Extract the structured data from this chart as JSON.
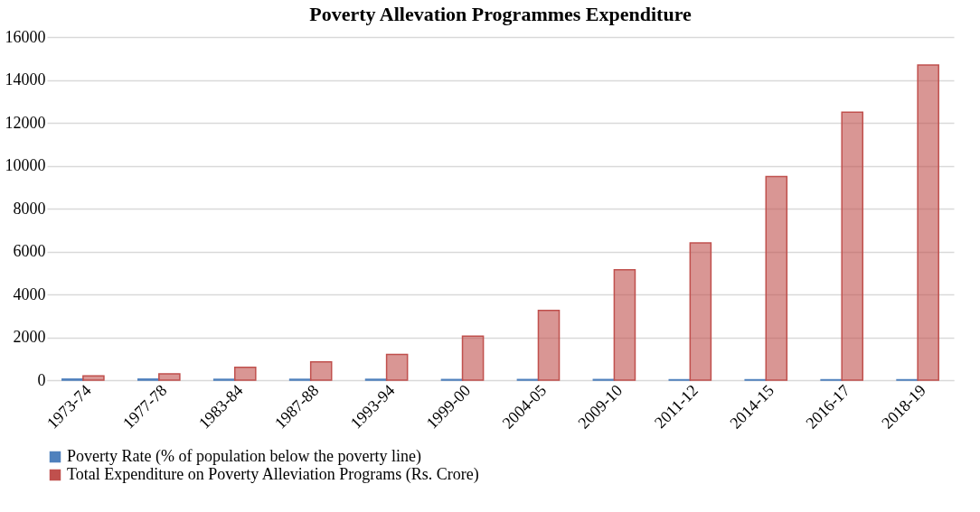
{
  "chart_data": {
    "type": "bar",
    "title": "Poverty Allevation Programmes Expenditure",
    "categories": [
      "1973-74",
      "1977-78",
      "1983-84",
      "1987-88",
      "1993-94",
      "1999-00",
      "2004-05",
      "2009-10",
      "2011-12",
      "2014-15",
      "2016-17",
      "2018-19"
    ],
    "series": [
      {
        "name": "Poverty Rate (% of population below the poverty line)",
        "color": "#4f81bd",
        "values": [
          50,
          50,
          40,
          40,
          40,
          30,
          30,
          30,
          20,
          20,
          20,
          20
        ]
      },
      {
        "name": "Total Expenditure on Poverty Alleviation Programs (Rs. Crore)",
        "color": "#c0504d",
        "values": [
          200,
          300,
          600,
          850,
          1200,
          2050,
          3250,
          5150,
          6400,
          9500,
          12500,
          14700
        ]
      }
    ],
    "ylim": [
      0,
      16000
    ],
    "yticks": [
      0,
      2000,
      4000,
      6000,
      8000,
      10000,
      12000,
      14000,
      16000
    ],
    "grid": "y",
    "legend": "bottom"
  }
}
